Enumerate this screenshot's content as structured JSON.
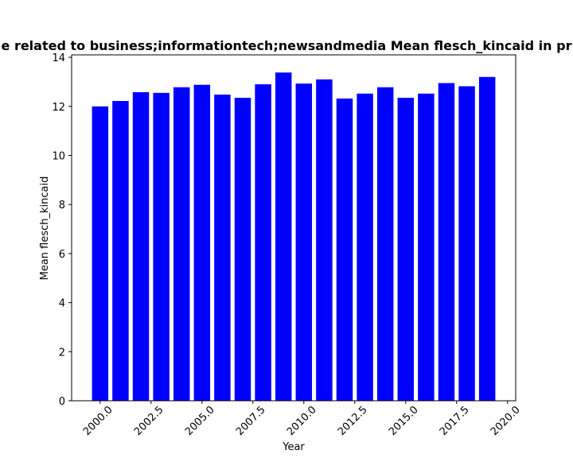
{
  "chart_data": {
    "type": "bar",
    "title": "Mean flesch_kincaid of articles related to business;informationtech;newsandmedia Mean flesch_kincaid in pr",
    "title_visible": "e related to business;informationtech;newsandmedia Mean flesch_kincaid in pr",
    "xlabel": "Year",
    "ylabel": "Mean flesch_kincaid",
    "x": [
      2000,
      2001,
      2002,
      2003,
      2004,
      2005,
      2006,
      2007,
      2008,
      2009,
      2010,
      2011,
      2012,
      2013,
      2014,
      2015,
      2016,
      2017,
      2018,
      2019
    ],
    "values": [
      12.0,
      12.22,
      12.58,
      12.55,
      12.78,
      12.88,
      12.48,
      12.35,
      12.9,
      13.38,
      12.93,
      13.1,
      12.32,
      12.52,
      12.78,
      12.35,
      12.52,
      12.95,
      12.82,
      13.2
    ],
    "xlim": [
      1998.6,
      2020.4
    ],
    "ylim": [
      0,
      14.1
    ],
    "xticks": [
      "2000.0",
      "2002.5",
      "2005.0",
      "2007.5",
      "2010.0",
      "2012.5",
      "2015.0",
      "2017.5",
      "2020.0"
    ],
    "yticks": [
      "0",
      "2",
      "4",
      "6",
      "8",
      "10",
      "12",
      "14"
    ],
    "bar_color": "#0000ff",
    "grid": false,
    "legend": "none"
  }
}
